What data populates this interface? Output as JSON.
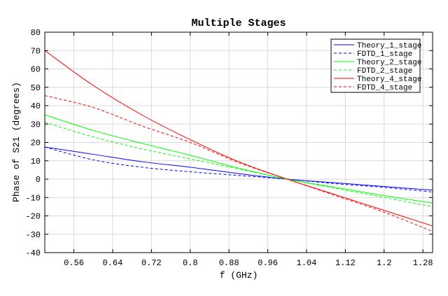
{
  "chart_data": {
    "type": "line",
    "title": "Multiple Stages",
    "xlabel": "f (GHz)",
    "ylabel": "Phase of S21 (degrees)",
    "xlim": [
      0.5,
      1.3
    ],
    "ylim": [
      -40,
      80
    ],
    "xticks": [
      0.56,
      0.64,
      0.72,
      0.8,
      0.88,
      0.96,
      1.04,
      1.12,
      1.2,
      1.28
    ],
    "xtick_labels": [
      "0.56",
      "0.64",
      "0.72",
      "0.8",
      "0.88",
      "0.96",
      "1.04",
      "1.12",
      "1.2",
      "1.28"
    ],
    "yticks": [
      -40,
      -30,
      -20,
      -10,
      0,
      10,
      20,
      30,
      40,
      50,
      60,
      70,
      80
    ],
    "ytick_labels": [
      "-40",
      "-30",
      "-20",
      "-10",
      "0",
      "10",
      "20",
      "30",
      "40",
      "50",
      "60",
      "70",
      "80"
    ],
    "grid": true,
    "legend_position": "top-right",
    "x": [
      0.5,
      0.6,
      0.7,
      0.8,
      0.9,
      1.0,
      1.1,
      1.2,
      1.3
    ],
    "series": [
      {
        "name": "Theory_1_stage",
        "color": "#0000ff",
        "dashed": false,
        "values": [
          17.5,
          13.5,
          9.5,
          6.5,
          3,
          0,
          -2,
          -4,
          -6
        ]
      },
      {
        "name": "FDTD_1_stage",
        "color": "#0000ff",
        "dashed": true,
        "values": [
          17.5,
          10.5,
          6.5,
          4,
          2,
          0,
          -2.5,
          -4.5,
          -7
        ]
      },
      {
        "name": "Theory_2_stage",
        "color": "#00ff00",
        "dashed": false,
        "values": [
          35,
          26.5,
          19.5,
          13,
          6,
          0,
          -4.5,
          -9,
          -13
        ]
      },
      {
        "name": "FDTD_2_stage",
        "color": "#00ff00",
        "dashed": true,
        "values": [
          31,
          23,
          16.5,
          11,
          5.5,
          0,
          -5,
          -10,
          -15
        ]
      },
      {
        "name": "Theory_4_stage",
        "color": "#ff0000",
        "dashed": false,
        "values": [
          70,
          51,
          35,
          21.5,
          9.5,
          0,
          -8.5,
          -17,
          -25.5
        ]
      },
      {
        "name": "FDTD_4_stage",
        "color": "#ff0000",
        "dashed": true,
        "values": [
          45.5,
          39,
          29,
          20,
          9,
          0,
          -9,
          -18,
          -28.5
        ]
      }
    ]
  }
}
